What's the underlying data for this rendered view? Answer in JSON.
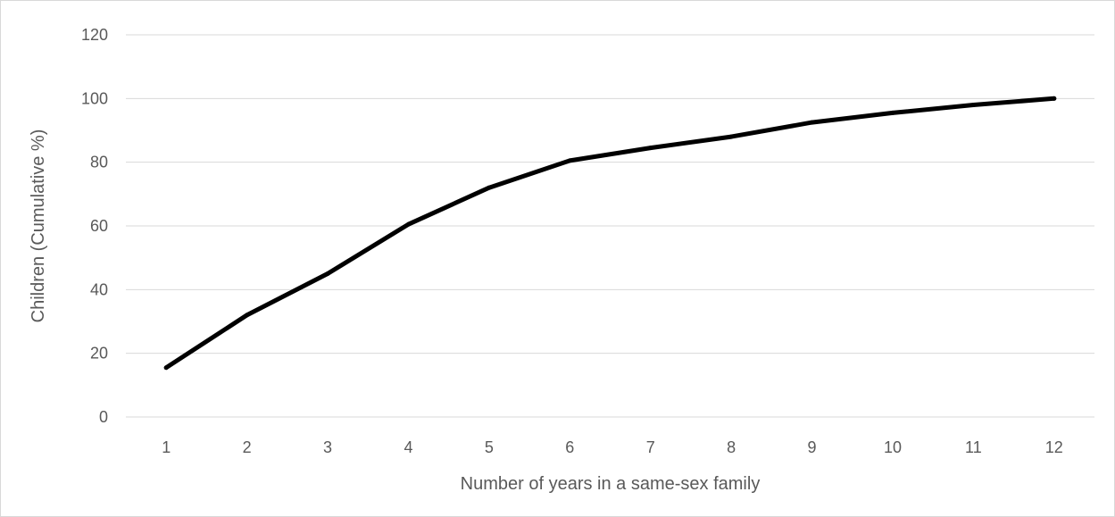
{
  "chart_data": {
    "type": "line",
    "title": "",
    "xlabel": "Number of years in a same-sex family",
    "ylabel": "Children (Cumulative %)",
    "categories": [
      "1",
      "2",
      "3",
      "4",
      "5",
      "6",
      "7",
      "8",
      "9",
      "10",
      "11",
      "12"
    ],
    "series": [
      {
        "values": [
          15.5,
          32,
          45,
          60.5,
          72,
          80.5,
          84.5,
          88,
          92.5,
          95.5,
          98,
          100
        ],
        "color": "#000000"
      }
    ],
    "ylim": [
      0,
      120
    ],
    "yticks": [
      "0",
      "20",
      "40",
      "60",
      "80",
      "100",
      "120"
    ],
    "grid": true,
    "legend": "none"
  }
}
